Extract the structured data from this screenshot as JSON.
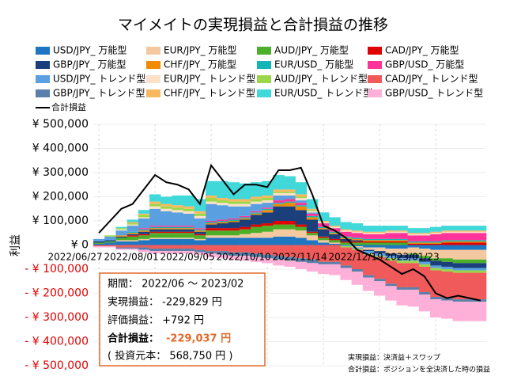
{
  "chart_data": {
    "type": "stacked_area",
    "title": "マイメイトの実現損益と合計損益の推移",
    "y_label": "利益",
    "categories": [
      "2022/06/27",
      null,
      null,
      null,
      null,
      "2022/08/01",
      null,
      null,
      null,
      null,
      "2022/09/05",
      null,
      null,
      null,
      null,
      "2022/10/10",
      null,
      null,
      null,
      null,
      "2022/11/14",
      null,
      null,
      null,
      null,
      "2022/12/19",
      null,
      null,
      null,
      null,
      "2023/01/23",
      null,
      null,
      null,
      null
    ],
    "ylim": [
      -500000,
      500000
    ],
    "yticks": [
      {
        "value": 500000,
        "label": "¥ 500,000"
      },
      {
        "value": 400000,
        "label": "¥ 400,000"
      },
      {
        "value": 300000,
        "label": "¥ 300,000"
      },
      {
        "value": 200000,
        "label": "¥ 200,000"
      },
      {
        "value": 100000,
        "label": "¥ 100,000"
      },
      {
        "value": 0,
        "label": "¥ 0"
      },
      {
        "value": -100000,
        "label": "- ¥ 100,000"
      },
      {
        "value": -200000,
        "label": "- ¥ 200,000"
      },
      {
        "value": -300000,
        "label": "- ¥ 300,000"
      },
      {
        "value": -400000,
        "label": "- ¥ 400,000"
      },
      {
        "value": -500000,
        "label": "- ¥ 500,000"
      }
    ],
    "negative_tick_color": "#e00000",
    "series": [
      {
        "name": "USD/JPY_ 万能型",
        "color": "#1f77c4",
        "values": [
          5000,
          10000,
          15000,
          15000,
          20000,
          25000,
          25000,
          25000,
          25000,
          20000,
          30000,
          30000,
          30000,
          30000,
          30000,
          30000,
          35000,
          35000,
          30000,
          20000,
          10000,
          5000,
          0,
          -5000,
          -10000,
          -10000,
          -15000,
          -15000,
          -10000,
          -15000,
          -20000,
          -20000,
          -20000,
          -20000,
          -20000
        ]
      },
      {
        "name": "EUR/JPY_ 万能型",
        "color": "#f5c9a0",
        "values": [
          0,
          0,
          5000,
          5000,
          5000,
          5000,
          5000,
          5000,
          5000,
          5000,
          10000,
          10000,
          10000,
          15000,
          20000,
          25000,
          30000,
          30000,
          30000,
          20000,
          10000,
          5000,
          0,
          -5000,
          -10000,
          -15000,
          -20000,
          -25000,
          -25000,
          -30000,
          -35000,
          -35000,
          -40000,
          -40000,
          -40000
        ]
      },
      {
        "name": "AUD/JPY_ 万能型",
        "color": "#4caf2a",
        "values": [
          5000,
          5000,
          10000,
          15000,
          15000,
          20000,
          20000,
          20000,
          20000,
          15000,
          20000,
          20000,
          20000,
          20000,
          25000,
          25000,
          20000,
          20000,
          15000,
          10000,
          10000,
          10000,
          10000,
          10000,
          10000,
          10000,
          10000,
          10000,
          -5000,
          -10000,
          -10000,
          -15000,
          -15000,
          -15000,
          -15000
        ]
      },
      {
        "name": "CAD/JPY_ 万能型",
        "color": "#e00000",
        "values": [
          0,
          0,
          0,
          5000,
          5000,
          5000,
          5000,
          5000,
          5000,
          5000,
          10000,
          10000,
          10000,
          10000,
          10000,
          10000,
          15000,
          15000,
          10000,
          5000,
          5000,
          5000,
          5000,
          5000,
          5000,
          5000,
          5000,
          5000,
          5000,
          5000,
          5000,
          10000,
          10000,
          10000,
          10000
        ]
      },
      {
        "name": "GBP/JPY_ 万能型",
        "color": "#1a3f7a",
        "values": [
          5000,
          5000,
          5000,
          5000,
          10000,
          10000,
          10000,
          10000,
          10000,
          10000,
          15000,
          20000,
          25000,
          30000,
          40000,
          45000,
          60000,
          60000,
          60000,
          50000,
          30000,
          20000,
          10000,
          5000,
          -5000,
          -10000,
          -10000,
          -15000,
          -15000,
          -15000,
          -20000,
          -20000,
          -20000,
          -20000,
          -20000
        ]
      },
      {
        "name": "CHF/JPY_ 万能型",
        "color": "#f08a00",
        "values": [
          0,
          0,
          5000,
          5000,
          5000,
          5000,
          5000,
          5000,
          5000,
          5000,
          5000,
          5000,
          5000,
          5000,
          5000,
          10000,
          10000,
          15000,
          15000,
          10000,
          5000,
          5000,
          5000,
          5000,
          5000,
          5000,
          5000,
          5000,
          5000,
          5000,
          5000,
          5000,
          5000,
          5000,
          5000
        ]
      },
      {
        "name": "EUR/USD_ 万能型",
        "color": "#12b5b5",
        "values": [
          0,
          0,
          0,
          5000,
          5000,
          5000,
          5000,
          5000,
          5000,
          5000,
          5000,
          5000,
          5000,
          5000,
          5000,
          5000,
          5000,
          5000,
          5000,
          5000,
          5000,
          5000,
          5000,
          5000,
          5000,
          5000,
          5000,
          5000,
          5000,
          5000,
          5000,
          5000,
          5000,
          5000,
          5000
        ]
      },
      {
        "name": "GBP/USD_ 万能型",
        "color": "#ff3399",
        "values": [
          0,
          0,
          0,
          0,
          5000,
          5000,
          5000,
          5000,
          5000,
          5000,
          5000,
          5000,
          5000,
          5000,
          5000,
          5000,
          10000,
          10000,
          10000,
          10000,
          15000,
          15000,
          20000,
          20000,
          20000,
          20000,
          25000,
          25000,
          25000,
          25000,
          30000,
          30000,
          30000,
          30000,
          30000
        ]
      },
      {
        "name": "USD/JPY_ トレンド型",
        "color": "#5aa0e0",
        "values": [
          10000,
          15000,
          20000,
          25000,
          40000,
          70000,
          60000,
          55000,
          50000,
          40000,
          70000,
          60000,
          50000,
          40000,
          30000,
          20000,
          20000,
          15000,
          10000,
          5000,
          0,
          0,
          -5000,
          -5000,
          -10000,
          -10000,
          -10000,
          -10000,
          -10000,
          -10000,
          -10000,
          -10000,
          -10000,
          -10000,
          -10000
        ]
      },
      {
        "name": "EUR/JPY_ トレンド型",
        "color": "#fde0c8",
        "values": [
          0,
          0,
          5000,
          5000,
          5000,
          10000,
          10000,
          10000,
          10000,
          10000,
          10000,
          10000,
          10000,
          10000,
          10000,
          10000,
          10000,
          10000,
          10000,
          5000,
          5000,
          5000,
          5000,
          5000,
          5000,
          5000,
          5000,
          5000,
          5000,
          5000,
          5000,
          5000,
          5000,
          5000,
          5000
        ]
      },
      {
        "name": "AUD/JPY_ トレンド型",
        "color": "#9ad84a",
        "values": [
          0,
          5000,
          5000,
          5000,
          10000,
          10000,
          10000,
          10000,
          10000,
          10000,
          15000,
          10000,
          10000,
          10000,
          10000,
          10000,
          5000,
          5000,
          5000,
          5000,
          0,
          0,
          -5000,
          -5000,
          -5000,
          -5000,
          -10000,
          -10000,
          -10000,
          -10000,
          -10000,
          -10000,
          -10000,
          -10000,
          -10000
        ]
      },
      {
        "name": "CAD/JPY_ トレンド型",
        "color": "#f05a5a",
        "values": [
          -5000,
          -5000,
          -10000,
          -10000,
          -10000,
          -15000,
          -15000,
          -15000,
          -15000,
          -20000,
          -25000,
          -25000,
          -30000,
          -30000,
          -35000,
          -40000,
          -45000,
          -50000,
          -55000,
          -60000,
          -70000,
          -70000,
          -75000,
          -80000,
          -85000,
          -90000,
          -95000,
          -100000,
          -100000,
          -105000,
          -110000,
          -110000,
          -110000,
          -110000,
          -110000
        ]
      },
      {
        "name": "GBP/JPY_ トレンド型",
        "color": "#5a7fa8",
        "values": [
          0,
          0,
          -5000,
          -5000,
          -10000,
          -10000,
          -10000,
          -10000,
          -10000,
          -10000,
          -10000,
          -15000,
          -15000,
          -15000,
          -15000,
          -15000,
          -15000,
          -15000,
          -15000,
          -15000,
          -10000,
          -10000,
          -10000,
          -10000,
          -10000,
          -10000,
          -10000,
          -10000,
          -10000,
          -10000,
          -10000,
          -10000,
          -10000,
          -10000,
          -10000
        ]
      },
      {
        "name": "CHF/JPY_ トレンド型",
        "color": "#f8b860",
        "values": [
          0,
          0,
          0,
          5000,
          5000,
          10000,
          10000,
          10000,
          10000,
          10000,
          10000,
          10000,
          10000,
          10000,
          10000,
          10000,
          10000,
          10000,
          10000,
          5000,
          5000,
          5000,
          5000,
          5000,
          5000,
          5000,
          5000,
          5000,
          5000,
          5000,
          5000,
          5000,
          5000,
          5000,
          5000
        ]
      },
      {
        "name": "EUR/USD_ トレンド型",
        "color": "#40d8d8",
        "values": [
          0,
          0,
          5000,
          10000,
          15000,
          30000,
          30000,
          40000,
          45000,
          50000,
          60000,
          70000,
          70000,
          65000,
          60000,
          60000,
          60000,
          55000,
          50000,
          40000,
          35000,
          35000,
          30000,
          30000,
          25000,
          25000,
          20000,
          20000,
          20000,
          20000,
          20000,
          20000,
          20000,
          20000,
          20000
        ]
      },
      {
        "name": "GBP/USD_ トレンド型",
        "color": "#ffb0d8",
        "values": [
          -5000,
          -5000,
          -5000,
          -5000,
          -10000,
          -10000,
          -10000,
          -10000,
          -10000,
          -10000,
          -15000,
          -15000,
          -15000,
          -20000,
          -20000,
          -20000,
          -25000,
          -25000,
          -30000,
          -35000,
          -40000,
          -45000,
          -50000,
          -55000,
          -55000,
          -60000,
          -60000,
          -65000,
          -70000,
          -70000,
          -75000,
          -75000,
          -80000,
          -80000,
          -80000
        ]
      }
    ],
    "total": {
      "name": "合計損益",
      "color": "#000000",
      "values": [
        50000,
        100000,
        150000,
        170000,
        230000,
        290000,
        260000,
        250000,
        230000,
        170000,
        330000,
        270000,
        210000,
        250000,
        250000,
        240000,
        310000,
        310000,
        320000,
        210000,
        80000,
        60000,
        30000,
        -20000,
        -40000,
        -60000,
        -90000,
        -120000,
        -100000,
        -130000,
        -200000,
        -220000,
        -210000,
        -220000,
        -230000
      ]
    },
    "info": {
      "period": "期間： 2022/06 〜 2023/02",
      "realized": "実現損益： -229,829 円",
      "unrealized": "評価損益： +792 円",
      "total_label": "合計損益：",
      "total_value": "-229,037 円",
      "capital": "( 投資元本： 568,750 円 )"
    },
    "notes": [
      "実現損益：決済益＋スワップ",
      "合計損益：ポジションを全決済した時の損益"
    ]
  }
}
